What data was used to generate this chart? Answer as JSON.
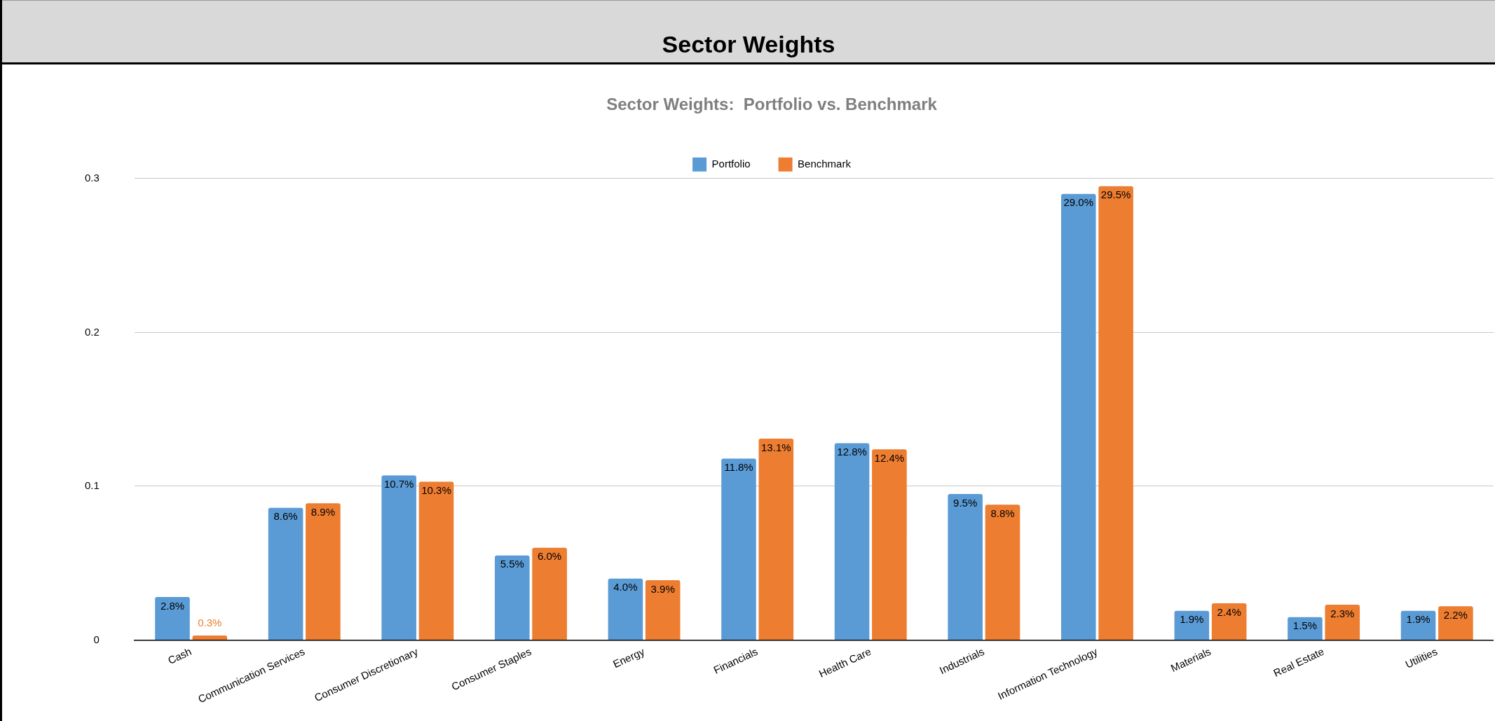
{
  "chart_data": {
    "type": "bar",
    "title": "Sector Weights",
    "subtitle": "Sector Weights:  Portfolio vs. Benchmark",
    "categories": [
      "Cash",
      "Communication Services",
      "Consumer Discretionary",
      "Consumer Staples",
      "Energy",
      "Financials",
      "Health Care",
      "Industrials",
      "Information Technology",
      "Materials",
      "Real Estate",
      "Utilities"
    ],
    "series": [
      {
        "name": "Portfolio",
        "color": "#5b9bd5",
        "values": [
          0.028,
          0.086,
          0.107,
          0.055,
          0.04,
          0.118,
          0.128,
          0.095,
          0.29,
          0.019,
          0.015,
          0.019
        ],
        "value_labels": [
          "2.8%",
          "8.6%",
          "10.7%",
          "5.5%",
          "4.0%",
          "11.8%",
          "12.8%",
          "9.5%",
          "29.0%",
          "1.9%",
          "1.5%",
          "1.9%"
        ]
      },
      {
        "name": "Benchmark",
        "color": "#ed7d31",
        "values": [
          0.003,
          0.089,
          0.103,
          0.06,
          0.039,
          0.131,
          0.124,
          0.088,
          0.295,
          0.024,
          0.023,
          0.022
        ],
        "value_labels": [
          "0.3%",
          "8.9%",
          "10.3%",
          "6.0%",
          "3.9%",
          "13.1%",
          "12.4%",
          "8.8%",
          "29.5%",
          "2.4%",
          "2.3%",
          "2.2%"
        ]
      }
    ],
    "ylim": [
      0,
      0.3
    ],
    "yticks": [
      0,
      0.1,
      0.2,
      0.3
    ],
    "grid": "y",
    "legend": "top"
  }
}
